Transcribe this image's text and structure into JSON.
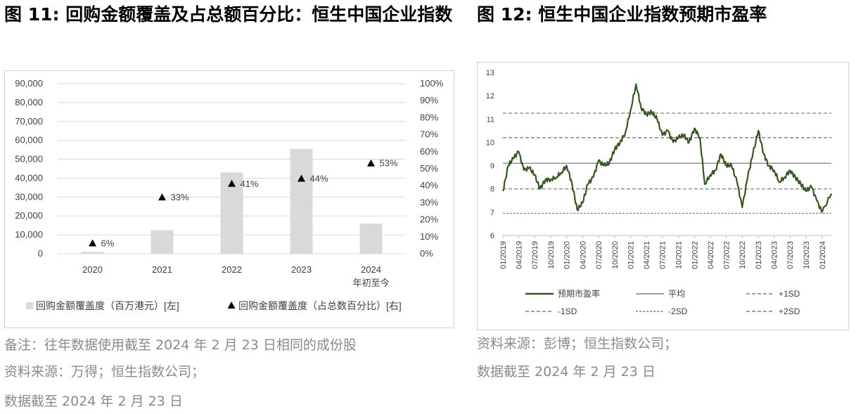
{
  "left": {
    "title": "图 11: 回购金额覆盖及占总额百分比：恒生中国企业指数",
    "notes": [
      "备注：往年数据使用截至 2024 年 2 月 23 日相同的成份股",
      "资料来源：万得；恒生指数公司；",
      "数据截至 2024 年 2 月 23 日"
    ]
  },
  "right": {
    "title": "图 12: 恒生中国企业指数预期市盈率",
    "notes": [
      "资料来源：彭博；恒生指数公司；",
      "数据截至 2024 年 2 月 23 日"
    ]
  },
  "chart_data": [
    {
      "type": "bar",
      "categories": [
        "2020",
        "2021",
        "2022",
        "2023",
        "2024\n年初至今"
      ],
      "category_lines": [
        [
          "2020"
        ],
        [
          "2021"
        ],
        [
          "2022"
        ],
        [
          "2023"
        ],
        [
          "2024",
          "年初至今"
        ]
      ],
      "series": [
        {
          "name": "回购金额覆盖度（百万港元）[左]",
          "axis": "left",
          "kind": "bar",
          "values": [
            1000,
            12500,
            43000,
            55500,
            16000
          ],
          "color": "#d9d9d9"
        },
        {
          "name": "回购金额覆盖度（占总数百分比）[右]",
          "axis": "right",
          "kind": "marker",
          "values": [
            6,
            33,
            41,
            44,
            53
          ],
          "labels": [
            "6%",
            "33%",
            "41%",
            "44%",
            "53%"
          ],
          "color": "#000000"
        }
      ],
      "y_left": {
        "min": 0,
        "max": 90000,
        "ticks": [
          0,
          10000,
          20000,
          30000,
          40000,
          50000,
          60000,
          70000,
          80000,
          90000
        ],
        "tick_labels": [
          "0",
          "10,000",
          "20,000",
          "30,000",
          "40,000",
          "50,000",
          "60,000",
          "70,000",
          "80,000",
          "90,000"
        ]
      },
      "y_right": {
        "min": 0,
        "max": 100,
        "ticks": [
          0,
          10,
          20,
          30,
          40,
          50,
          60,
          70,
          80,
          90,
          100
        ],
        "tick_labels": [
          "0%",
          "10%",
          "20%",
          "30%",
          "40%",
          "50%",
          "60%",
          "70%",
          "80%",
          "90%",
          "100%"
        ]
      },
      "grid": true,
      "legend": "bottom"
    },
    {
      "type": "line",
      "x_range": [
        "2019-01",
        "2024-02-23"
      ],
      "x_tick_labels": [
        "01/2019",
        "04/2019",
        "07/2019",
        "10/2019",
        "01/2020",
        "04/2020",
        "07/2020",
        "10/2020",
        "01/2021",
        "04/2021",
        "07/2021",
        "10/2021",
        "01/2022",
        "04/2022",
        "07/2022",
        "10/2022",
        "01/2023",
        "04/2023",
        "07/2023",
        "10/2023",
        "01/2024"
      ],
      "ylim": [
        6,
        13
      ],
      "y_ticks": [
        6,
        7,
        8,
        9,
        10,
        11,
        12,
        13
      ],
      "series": [
        {
          "name": "预期市盈率",
          "color": "#375623",
          "points": [
            [
              "2019-01",
              7.9
            ],
            [
              "2019-02",
              9.0
            ],
            [
              "2019-03",
              9.3
            ],
            [
              "2019-04",
              9.6
            ],
            [
              "2019-05",
              8.8
            ],
            [
              "2019-06",
              8.9
            ],
            [
              "2019-07",
              8.6
            ],
            [
              "2019-08",
              8.0
            ],
            [
              "2019-09",
              8.4
            ],
            [
              "2019-10",
              8.4
            ],
            [
              "2019-11",
              8.5
            ],
            [
              "2019-12",
              8.7
            ],
            [
              "2020-01",
              9.0
            ],
            [
              "2020-02",
              8.2
            ],
            [
              "2020-03",
              7.1
            ],
            [
              "2020-04",
              7.4
            ],
            [
              "2020-05",
              8.2
            ],
            [
              "2020-06",
              8.5
            ],
            [
              "2020-07",
              9.2
            ],
            [
              "2020-08",
              9.0
            ],
            [
              "2020-09",
              9.1
            ],
            [
              "2020-10",
              9.7
            ],
            [
              "2020-11",
              10.0
            ],
            [
              "2020-12",
              10.4
            ],
            [
              "2021-01",
              11.4
            ],
            [
              "2021-02",
              12.5
            ],
            [
              "2021-03",
              11.5
            ],
            [
              "2021-04",
              11.2
            ],
            [
              "2021-05",
              11.3
            ],
            [
              "2021-06",
              11.0
            ],
            [
              "2021-07",
              10.3
            ],
            [
              "2021-08",
              10.5
            ],
            [
              "2021-09",
              10.0
            ],
            [
              "2021-10",
              10.2
            ],
            [
              "2021-11",
              10.3
            ],
            [
              "2021-12",
              10.0
            ],
            [
              "2022-01",
              10.6
            ],
            [
              "2022-02",
              10.2
            ],
            [
              "2022-03",
              8.2
            ],
            [
              "2022-04",
              8.6
            ],
            [
              "2022-05",
              8.8
            ],
            [
              "2022-06",
              9.5
            ],
            [
              "2022-07",
              9.0
            ],
            [
              "2022-08",
              9.0
            ],
            [
              "2022-09",
              8.3
            ],
            [
              "2022-10",
              7.2
            ],
            [
              "2022-11",
              8.5
            ],
            [
              "2022-12",
              9.5
            ],
            [
              "2023-01",
              10.5
            ],
            [
              "2023-02",
              9.5
            ],
            [
              "2023-03",
              9.0
            ],
            [
              "2023-04",
              8.8
            ],
            [
              "2023-05",
              8.3
            ],
            [
              "2023-06",
              8.5
            ],
            [
              "2023-07",
              8.8
            ],
            [
              "2023-08",
              8.5
            ],
            [
              "2023-09",
              8.2
            ],
            [
              "2023-10",
              7.9
            ],
            [
              "2023-11",
              8.1
            ],
            [
              "2023-12",
              7.5
            ],
            [
              "2024-01",
              7.0
            ],
            [
              "2024-02-23",
              7.8
            ]
          ]
        },
        {
          "name": "平均",
          "value": 9.1,
          "color": "#7f7f7f",
          "dash": "solid"
        },
        {
          "name": "+1SD",
          "value": 10.2,
          "color": "#7f7f7f",
          "dash": "dash"
        },
        {
          "name": "-1SD",
          "value": 8.0,
          "color": "#7f7f7f",
          "dash": "dash"
        },
        {
          "name": "+2SD",
          "value": 11.25,
          "color": "#7f7f7f",
          "dash": "dash"
        },
        {
          "name": "-2SD",
          "value": 6.95,
          "color": "#7f7f7f",
          "dash": "dot"
        }
      ],
      "grid": false,
      "legend": "bottom"
    }
  ]
}
